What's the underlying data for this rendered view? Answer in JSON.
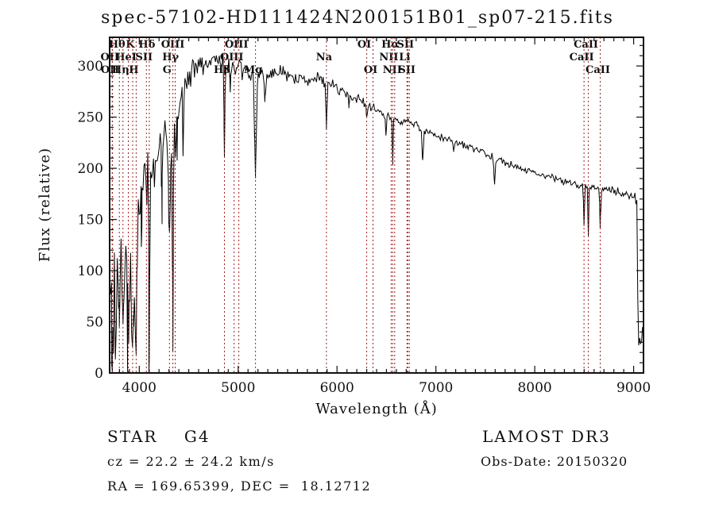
{
  "title": "spec-57102-HD111424N200151B01_sp07-215.fits",
  "annotations": {
    "star_class": "STAR    G4",
    "cz": "cz = 22.2 ± 24.2 km/s",
    "radec": "RA = 169.65399, DEC =  18.12712",
    "survey": "LAMOST DR3",
    "obs_date": "Obs-Date: 20150320"
  },
  "chart_data": {
    "type": "line",
    "title": "spec-57102-HD111424N200151B01_sp07-215.fits",
    "xlabel": "Wavelength (Å)",
    "ylabel": "Flux (relative)",
    "xlim": [
      3700,
      9100
    ],
    "ylim": [
      0,
      328
    ],
    "x_major_ticks": [
      4000,
      5000,
      6000,
      7000,
      8000,
      9000
    ],
    "x_minor_step": 100,
    "y_major_ticks": [
      0,
      50,
      100,
      150,
      200,
      250,
      300
    ],
    "y_minor_step": 10,
    "grid": false,
    "legend": "none",
    "spectrum_color": "#000000",
    "line_marker_color": "#a02020",
    "spectral_lines": [
      {
        "wavelength": 3726,
        "label": "OII",
        "row": 2
      },
      {
        "wavelength": 3729,
        "label": "OII",
        "row": 3
      },
      {
        "wavelength": 3798,
        "label": "Hθ",
        "row": 1
      },
      {
        "wavelength": 3835,
        "label": "Hη",
        "row": 3
      },
      {
        "wavelength": 3889,
        "label": "HeI",
        "row": 2
      },
      {
        "wavelength": 3933,
        "label": "K",
        "row": 1
      },
      {
        "wavelength": 3968,
        "label": "H",
        "row": 3
      },
      {
        "wavelength": 4072,
        "label": "SII",
        "row": 2
      },
      {
        "wavelength": 4101,
        "label": "Hδ",
        "row": 1
      },
      {
        "wavelength": 4305,
        "label": "G",
        "row": 3
      },
      {
        "wavelength": 4340,
        "label": "Hγ",
        "row": 2
      },
      {
        "wavelength": 4363,
        "label": "OIII",
        "row": 1
      },
      {
        "wavelength": 4861,
        "label": "Hβ",
        "row": 3
      },
      {
        "wavelength": 4959,
        "label": "OIII",
        "row": 2
      },
      {
        "wavelength": 5007,
        "label": "OIII",
        "row": 1
      },
      {
        "wavelength": 5175,
        "label": "Mg",
        "row": 3
      },
      {
        "wavelength": 5893,
        "label": "Na",
        "row": 2
      },
      {
        "wavelength": 6300,
        "label": "OI",
        "row": 1
      },
      {
        "wavelength": 6364,
        "label": "OI",
        "row": 3
      },
      {
        "wavelength": 6548,
        "label": "NII",
        "row": 2
      },
      {
        "wavelength": 6563,
        "label": "Hα",
        "row": 1
      },
      {
        "wavelength": 6583,
        "label": "NII",
        "row": 3
      },
      {
        "wavelength": 6708,
        "label": "Li",
        "row": 2
      },
      {
        "wavelength": 6716,
        "label": "SII",
        "row": 1
      },
      {
        "wavelength": 6731,
        "label": "SII",
        "row": 3
      },
      {
        "wavelength": 8498,
        "label": "CaII",
        "row": 2
      },
      {
        "wavelength": 8542,
        "label": "CaII",
        "row": 1
      },
      {
        "wavelength": 8662,
        "label": "CaII",
        "row": 3
      }
    ],
    "continuum_anchors": [
      [
        3700,
        85
      ],
      [
        3715,
        95
      ],
      [
        3730,
        95
      ],
      [
        3745,
        80
      ],
      [
        3760,
        85
      ],
      [
        3775,
        90
      ],
      [
        3790,
        92
      ],
      [
        3805,
        95
      ],
      [
        3820,
        98
      ],
      [
        3835,
        95
      ],
      [
        3850,
        100
      ],
      [
        3865,
        105
      ],
      [
        3880,
        108
      ],
      [
        3895,
        105
      ],
      [
        3910,
        100
      ],
      [
        3925,
        90
      ],
      [
        3940,
        95
      ],
      [
        3955,
        105
      ],
      [
        3968,
        110
      ],
      [
        3980,
        130
      ],
      [
        4000,
        165
      ],
      [
        4030,
        180
      ],
      [
        4060,
        188
      ],
      [
        4090,
        196
      ],
      [
        4120,
        200
      ],
      [
        4150,
        205
      ],
      [
        4180,
        210
      ],
      [
        4210,
        222
      ],
      [
        4240,
        228
      ],
      [
        4270,
        225
      ],
      [
        4300,
        218
      ],
      [
        4330,
        240
      ],
      [
        4360,
        248
      ],
      [
        4400,
        262
      ],
      [
        4450,
        275
      ],
      [
        4500,
        288
      ],
      [
        4550,
        298
      ],
      [
        4600,
        303
      ],
      [
        4650,
        300
      ],
      [
        4700,
        303
      ],
      [
        4750,
        307
      ],
      [
        4800,
        308
      ],
      [
        4861,
        303
      ],
      [
        4900,
        300
      ],
      [
        4950,
        297
      ],
      [
        5000,
        296
      ],
      [
        5050,
        294
      ],
      [
        5100,
        294
      ],
      [
        5175,
        290
      ],
      [
        5250,
        294
      ],
      [
        5300,
        293
      ],
      [
        5400,
        293
      ],
      [
        5500,
        290
      ],
      [
        5600,
        286
      ],
      [
        5700,
        288
      ],
      [
        5800,
        288
      ],
      [
        5900,
        284
      ],
      [
        6000,
        279
      ],
      [
        6100,
        273
      ],
      [
        6200,
        268
      ],
      [
        6300,
        262
      ],
      [
        6400,
        257
      ],
      [
        6500,
        251
      ],
      [
        6600,
        247
      ],
      [
        6700,
        246
      ],
      [
        6800,
        242
      ],
      [
        6900,
        236
      ],
      [
        7000,
        231
      ],
      [
        7100,
        229
      ],
      [
        7200,
        226
      ],
      [
        7300,
        222
      ],
      [
        7400,
        218
      ],
      [
        7500,
        214
      ],
      [
        7600,
        210
      ],
      [
        7700,
        206
      ],
      [
        7800,
        202
      ],
      [
        7900,
        199
      ],
      [
        8000,
        196
      ],
      [
        8100,
        193
      ],
      [
        8200,
        190
      ],
      [
        8300,
        187
      ],
      [
        8400,
        185
      ],
      [
        8500,
        183
      ],
      [
        8600,
        181
      ],
      [
        8700,
        179
      ],
      [
        8800,
        178
      ],
      [
        8900,
        175
      ],
      [
        9000,
        172
      ],
      [
        9020,
        170
      ],
      [
        9035,
        165
      ],
      [
        9042,
        80
      ],
      [
        9050,
        18
      ],
      [
        9060,
        35
      ],
      [
        9075,
        30
      ],
      [
        9090,
        45
      ],
      [
        9100,
        20
      ]
    ],
    "noise_amp_anchors": [
      [
        3700,
        75
      ],
      [
        3730,
        60
      ],
      [
        3760,
        45
      ],
      [
        3800,
        40
      ],
      [
        3850,
        38
      ],
      [
        3900,
        38
      ],
      [
        3950,
        38
      ],
      [
        4000,
        34
      ],
      [
        4100,
        30
      ],
      [
        4200,
        26
      ],
      [
        4300,
        26
      ],
      [
        4400,
        20
      ],
      [
        4500,
        16
      ],
      [
        4600,
        14
      ],
      [
        4700,
        13
      ],
      [
        4800,
        12
      ],
      [
        4900,
        12
      ],
      [
        5000,
        11
      ],
      [
        5200,
        11
      ],
      [
        5400,
        10
      ],
      [
        5600,
        9
      ],
      [
        5800,
        8
      ],
      [
        6000,
        7
      ],
      [
        6200,
        6
      ],
      [
        6400,
        5
      ],
      [
        6600,
        5
      ],
      [
        6800,
        5
      ],
      [
        7000,
        4
      ],
      [
        7400,
        4
      ],
      [
        7800,
        4
      ],
      [
        8200,
        4
      ],
      [
        8600,
        4
      ],
      [
        9000,
        5
      ],
      [
        9040,
        8
      ],
      [
        9100,
        8
      ]
    ],
    "absorption_features": [
      [
        3727,
        35,
        6
      ],
      [
        3798,
        45,
        6
      ],
      [
        3835,
        45,
        6
      ],
      [
        3889,
        55,
        7
      ],
      [
        3933,
        72,
        8
      ],
      [
        3968,
        78,
        8
      ],
      [
        4026,
        25,
        5
      ],
      [
        4101,
        185,
        4
      ],
      [
        4227,
        35,
        4
      ],
      [
        4305,
        90,
        10
      ],
      [
        4340,
        222,
        4
      ],
      [
        4383,
        30,
        4
      ],
      [
        4861,
        92,
        4
      ],
      [
        4920,
        20,
        4
      ],
      [
        5175,
        98,
        9
      ],
      [
        5270,
        30,
        6
      ],
      [
        5893,
        48,
        5
      ],
      [
        6122,
        12,
        4
      ],
      [
        6300,
        14,
        4
      ],
      [
        6495,
        18,
        5
      ],
      [
        6563,
        44,
        4
      ],
      [
        6867,
        32,
        6
      ],
      [
        7180,
        10,
        5
      ],
      [
        7594,
        25,
        7
      ],
      [
        8498,
        38,
        4
      ],
      [
        8542,
        46,
        4
      ],
      [
        8662,
        38,
        4
      ]
    ],
    "noise_seed": 42
  }
}
